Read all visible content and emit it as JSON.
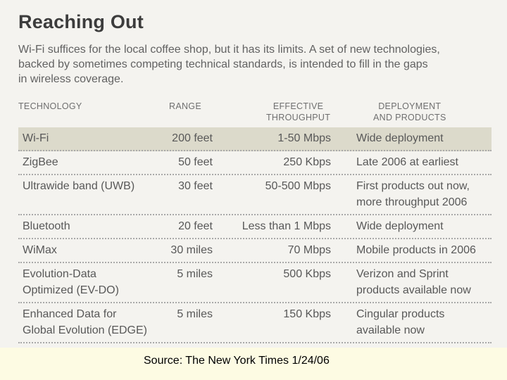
{
  "title": "Reaching Out",
  "intro_lines": [
    "Wi-Fi suffices for the local coffee shop, but it has its limits. A set of new technologies,",
    "backed by sometimes competing technical standards, is intended to fill in the gaps",
    "in wireless coverage."
  ],
  "headers": {
    "technology": [
      "TECHNOLOGY"
    ],
    "range": [
      "RANGE"
    ],
    "throughput": [
      "EFFECTIVE",
      "THROUGHPUT"
    ],
    "deployment": [
      "DEPLOYMENT",
      "AND PRODUCTS"
    ]
  },
  "rows": [
    {
      "technology": [
        "Wi-Fi"
      ],
      "range": "200 feet",
      "throughput": "1-50 Mbps",
      "deployment": [
        "Wide deployment"
      ],
      "highlighted": true
    },
    {
      "technology": [
        "ZigBee"
      ],
      "range": "50 feet",
      "throughput": "250 Kbps",
      "deployment": [
        "Late 2006 at earliest"
      ]
    },
    {
      "technology": [
        "Ultrawide band (UWB)"
      ],
      "range": "30 feet",
      "throughput": "50-500 Mbps",
      "deployment": [
        "First products out now,",
        "more throughput 2006"
      ]
    },
    {
      "technology": [
        "Bluetooth"
      ],
      "range": "20 feet",
      "throughput": "Less than 1 Mbps",
      "deployment": [
        "Wide deployment"
      ]
    },
    {
      "technology": [
        "WiMax"
      ],
      "range": "30 miles",
      "throughput": "70 Mbps",
      "deployment": [
        "Mobile products in 2006"
      ]
    },
    {
      "technology": [
        "Evolution-Data",
        "Optimized (EV-DO)"
      ],
      "range": "5 miles",
      "throughput": "500 Kbps",
      "deployment": [
        "Verizon and Sprint",
        "products available now"
      ]
    },
    {
      "technology": [
        "Enhanced Data for",
        "Global Evolution (EDGE)"
      ],
      "range": "5 miles",
      "throughput": "150 Kbps",
      "deployment": [
        "Cingular products",
        "available now"
      ]
    }
  ],
  "source": "Source: The New York Times 1/24/06",
  "colors": {
    "background": "#f4f3ef",
    "highlight_row": "#dcdacb",
    "source_bar": "#fdfbe3"
  }
}
